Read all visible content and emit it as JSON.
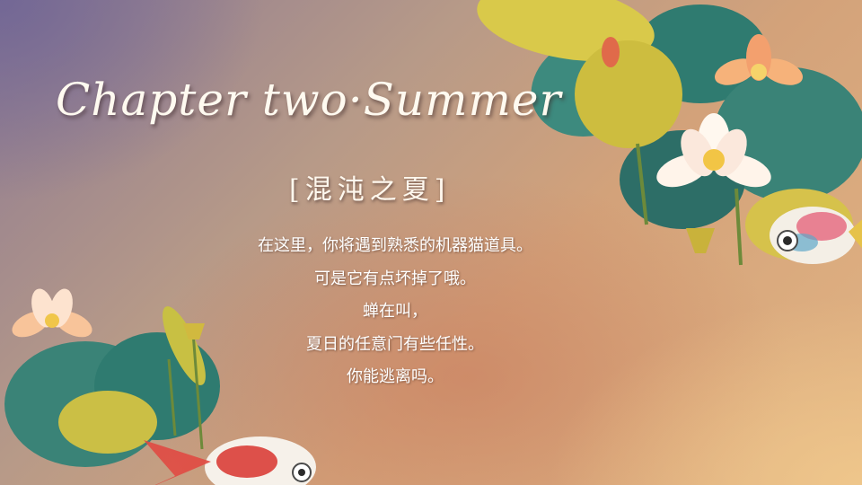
{
  "slide": {
    "title": "Chapter two·Summer",
    "subtitle": "[混沌之夏]",
    "lines": [
      "在这里，你将遇到熟悉的机器猫道具。",
      "可是它有点坏掉了哦。",
      "蝉在叫，",
      "夏日的任意门有些任性。",
      "你能逃离吗。"
    ]
  },
  "colors": {
    "lotus_leaf": "#3d8a7e",
    "leaf_yellow": "#d9c94a",
    "lotus_pink": "#f3a06e",
    "fish_red": "#d8342e"
  }
}
